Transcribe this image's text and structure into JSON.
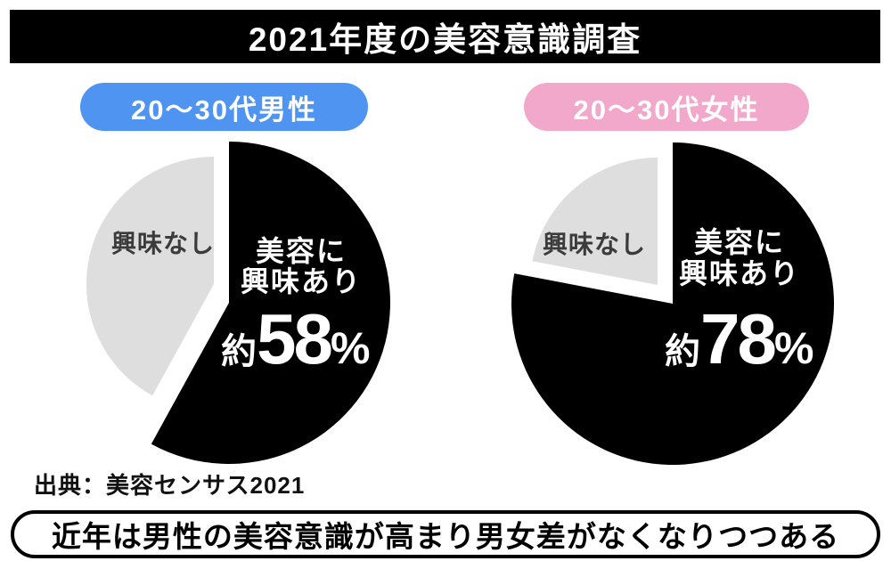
{
  "title": {
    "text": "2021年度の美容意識調査"
  },
  "source": {
    "text": "出典：美容センサス2021"
  },
  "footer": {
    "text": "近年は男性の美容意識が高まり男女差がなくなりつつある"
  },
  "colors": {
    "title_bg": "#000000",
    "title_text": "#ffffff",
    "badge_text": "#ffffff",
    "male_badge_bg": "#4E94F0",
    "female_badge_bg": "#F2A8CB",
    "slice_interested": "#000000",
    "slice_not_interested": "#DEDEDE",
    "interested_text": "#ffffff",
    "not_interested_text": "#3B3B3B",
    "footer_border": "#000000"
  },
  "chart_data": [
    {
      "type": "pie",
      "group": "20～30代男性",
      "badge_color": "#4E94F0",
      "start_angle_deg": 0,
      "direction": "clockwise",
      "exploded_slice": "興味なし",
      "slices": [
        {
          "label": "美容に興味あり",
          "value": 58,
          "display": "約58%",
          "color": "#000000"
        },
        {
          "label": "興味なし",
          "value": 42,
          "display": "",
          "color": "#DEDEDE"
        }
      ],
      "labels": {
        "line1": "美容に",
        "line2": "興味あり",
        "prefix": "約",
        "number": "58",
        "suffix": "%",
        "other": "興味なし"
      }
    },
    {
      "type": "pie",
      "group": "20～30代女性",
      "badge_color": "#F2A8CB",
      "start_angle_deg": 0,
      "direction": "clockwise",
      "exploded_slice": "興味なし",
      "slices": [
        {
          "label": "美容に興味あり",
          "value": 78,
          "display": "約78%",
          "color": "#000000"
        },
        {
          "label": "興味なし",
          "value": 22,
          "display": "",
          "color": "#DEDEDE"
        }
      ],
      "labels": {
        "line1": "美容に",
        "line2": "興味あり",
        "prefix": "約",
        "number": "78",
        "suffix": "%",
        "other": "興味なし"
      }
    }
  ]
}
